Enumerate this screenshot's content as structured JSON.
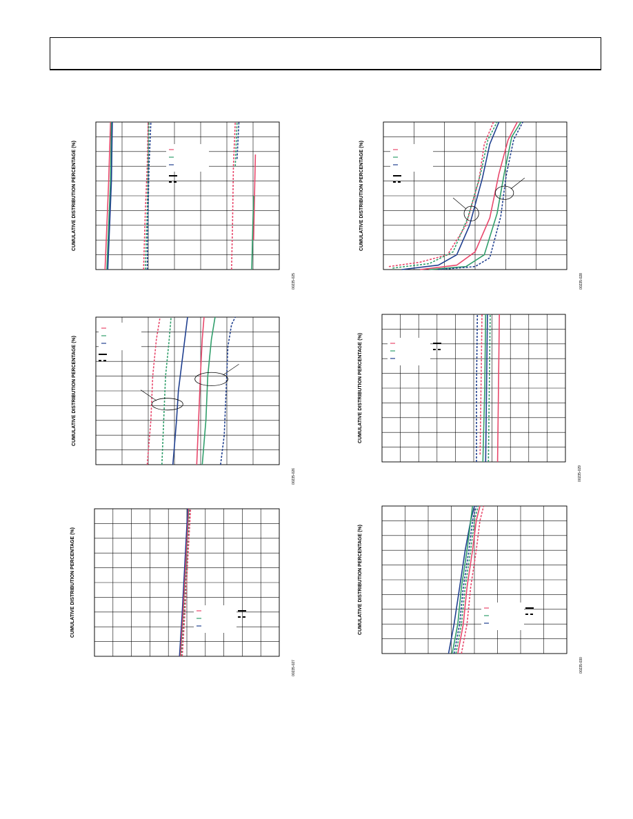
{
  "page": {
    "header_text": ""
  },
  "colors": {
    "red": "#e8476b",
    "green": "#2f9e6a",
    "blue": "#1f3f8f",
    "black": "#000000",
    "grid": "#000000"
  },
  "chart_data": [
    {
      "id": "fig1",
      "type": "line",
      "ylabel": "CUMULATIVE DISTRIBUTION PERCENTAGE  (%)",
      "figure_id": "00235-025",
      "legend_placement": "center",
      "grid": true,
      "series": [
        {
          "color": "red",
          "dash": false,
          "points": [
            [
              0.05,
              0.0
            ],
            [
              0.06,
              0.3
            ],
            [
              0.07,
              0.6
            ],
            [
              0.08,
              1.0
            ]
          ]
        },
        {
          "color": "green",
          "dash": false,
          "points": [
            [
              0.06,
              0.0
            ],
            [
              0.07,
              0.3
            ],
            [
              0.08,
              0.6
            ],
            [
              0.085,
              1.0
            ]
          ]
        },
        {
          "color": "blue",
          "dash": false,
          "points": [
            [
              0.065,
              0.0
            ],
            [
              0.075,
              0.3
            ],
            [
              0.085,
              0.6
            ],
            [
              0.09,
              1.0
            ]
          ]
        },
        {
          "color": "red",
          "dash": true,
          "points": [
            [
              0.26,
              0.0
            ],
            [
              0.27,
              0.4
            ],
            [
              0.28,
              0.7
            ],
            [
              0.285,
              1.0
            ]
          ]
        },
        {
          "color": "green",
          "dash": true,
          "points": [
            [
              0.27,
              0.0
            ],
            [
              0.28,
              0.4
            ],
            [
              0.285,
              0.7
            ],
            [
              0.29,
              1.0
            ]
          ]
        },
        {
          "color": "blue",
          "dash": true,
          "points": [
            [
              0.28,
              0.0
            ],
            [
              0.285,
              0.4
            ],
            [
              0.29,
              0.7
            ],
            [
              0.3,
              1.0
            ]
          ]
        },
        {
          "color": "red",
          "dash": true,
          "points": [
            [
              0.74,
              0.0
            ],
            [
              0.745,
              0.3
            ],
            [
              0.75,
              0.7
            ],
            [
              0.76,
              1.0
            ]
          ]
        },
        {
          "color": "green",
          "dash": true,
          "points": [
            [
              0.76,
              0.7
            ],
            [
              0.765,
              0.85
            ],
            [
              0.77,
              1.0
            ]
          ]
        },
        {
          "color": "blue",
          "dash": true,
          "points": [
            [
              0.77,
              0.75
            ],
            [
              0.775,
              0.88
            ],
            [
              0.78,
              1.0
            ]
          ]
        },
        {
          "color": "red",
          "dash": false,
          "points": [
            [
              0.86,
              0.2
            ],
            [
              0.865,
              0.5
            ],
            [
              0.87,
              0.78
            ]
          ]
        },
        {
          "color": "green",
          "dash": false,
          "points": [
            [
              0.85,
              0.0
            ],
            [
              0.855,
              0.25
            ],
            [
              0.86,
              0.5
            ]
          ]
        },
        {
          "color": "blue",
          "dash": false,
          "points": [
            [
              0.86,
              0.2
            ],
            [
              0.86,
              0.2
            ]
          ]
        }
      ]
    },
    {
      "id": "fig2",
      "type": "line",
      "ylabel": "CUMULATIVE DISTRIBUTION PERCENTAGE  (%)",
      "figure_id": "00235-028",
      "legend_placement": "top-left",
      "grid": true,
      "series": [
        {
          "color": "red",
          "dash": true,
          "points": [
            [
              0.03,
              0.02
            ],
            [
              0.2,
              0.05
            ],
            [
              0.35,
              0.1
            ],
            [
              0.45,
              0.3
            ],
            [
              0.52,
              0.6
            ],
            [
              0.55,
              0.85
            ],
            [
              0.6,
              1.0
            ]
          ]
        },
        {
          "color": "green",
          "dash": true,
          "points": [
            [
              0.05,
              0.01
            ],
            [
              0.25,
              0.04
            ],
            [
              0.38,
              0.12
            ],
            [
              0.46,
              0.35
            ],
            [
              0.53,
              0.65
            ],
            [
              0.57,
              0.88
            ],
            [
              0.62,
              1.0
            ]
          ]
        },
        {
          "color": "blue",
          "dash": false,
          "points": [
            [
              0.1,
              0.0
            ],
            [
              0.3,
              0.03
            ],
            [
              0.4,
              0.1
            ],
            [
              0.47,
              0.3
            ],
            [
              0.54,
              0.62
            ],
            [
              0.58,
              0.85
            ],
            [
              0.63,
              1.0
            ]
          ]
        },
        {
          "color": "red",
          "dash": false,
          "points": [
            [
              0.2,
              0.0
            ],
            [
              0.4,
              0.03
            ],
            [
              0.5,
              0.12
            ],
            [
              0.58,
              0.35
            ],
            [
              0.63,
              0.65
            ],
            [
              0.68,
              0.88
            ],
            [
              0.73,
              1.0
            ]
          ]
        },
        {
          "color": "green",
          "dash": false,
          "points": [
            [
              0.25,
              0.0
            ],
            [
              0.45,
              0.02
            ],
            [
              0.55,
              0.1
            ],
            [
              0.62,
              0.38
            ],
            [
              0.66,
              0.66
            ],
            [
              0.7,
              0.9
            ],
            [
              0.75,
              1.0
            ]
          ]
        },
        {
          "color": "blue",
          "dash": true,
          "points": [
            [
              0.3,
              0.0
            ],
            [
              0.5,
              0.02
            ],
            [
              0.58,
              0.08
            ],
            [
              0.64,
              0.36
            ],
            [
              0.67,
              0.64
            ],
            [
              0.71,
              0.88
            ],
            [
              0.76,
              1.0
            ]
          ]
        }
      ],
      "ellipses": [
        {
          "cx": 0.48,
          "cy": 0.38,
          "rx": 0.04,
          "ry": 0.05
        },
        {
          "cx": 0.66,
          "cy": 0.52,
          "rx": 0.05,
          "ry": 0.045
        }
      ]
    },
    {
      "id": "fig3",
      "type": "line",
      "ylabel": "CUMULATIVE DISTRIBUTION PERCENTAGE  (%)",
      "figure_id": "00235-026",
      "legend_placement": "top-left",
      "grid": true,
      "series": [
        {
          "color": "red",
          "dash": true,
          "points": [
            [
              0.28,
              0.0
            ],
            [
              0.3,
              0.3
            ],
            [
              0.31,
              0.6
            ],
            [
              0.33,
              0.85
            ],
            [
              0.35,
              1.0
            ]
          ]
        },
        {
          "color": "green",
          "dash": true,
          "points": [
            [
              0.36,
              0.0
            ],
            [
              0.37,
              0.3
            ],
            [
              0.38,
              0.6
            ],
            [
              0.4,
              0.85
            ],
            [
              0.41,
              1.0
            ]
          ]
        },
        {
          "color": "blue",
          "dash": false,
          "points": [
            [
              0.42,
              0.0
            ],
            [
              0.44,
              0.3
            ],
            [
              0.45,
              0.5
            ],
            [
              0.48,
              0.8
            ],
            [
              0.5,
              1.0
            ]
          ]
        },
        {
          "color": "red",
          "dash": false,
          "points": [
            [
              0.55,
              0.0
            ],
            [
              0.56,
              0.3
            ],
            [
              0.57,
              0.6
            ],
            [
              0.58,
              0.85
            ],
            [
              0.59,
              1.0
            ]
          ]
        },
        {
          "color": "green",
          "dash": false,
          "points": [
            [
              0.58,
              0.0
            ],
            [
              0.6,
              0.3
            ],
            [
              0.61,
              0.6
            ],
            [
              0.63,
              0.85
            ],
            [
              0.65,
              1.0
            ]
          ]
        },
        {
          "color": "blue",
          "dash": true,
          "points": [
            [
              0.68,
              0.0
            ],
            [
              0.7,
              0.2
            ],
            [
              0.71,
              0.5
            ],
            [
              0.72,
              0.8
            ],
            [
              0.74,
              0.95
            ],
            [
              0.76,
              1.0
            ]
          ]
        }
      ],
      "ellipses": [
        {
          "cx": 0.39,
          "cy": 0.41,
          "rx": 0.085,
          "ry": 0.04
        },
        {
          "cx": 0.63,
          "cy": 0.58,
          "rx": 0.09,
          "ry": 0.045
        }
      ]
    },
    {
      "id": "fig4",
      "type": "line",
      "ylabel": "CUMULATIVE DISTRIBUTION PERCENTAGE  (%)",
      "figure_id": "00235-029",
      "legend_placement": "top-left",
      "grid": true,
      "series": [
        {
          "color": "blue",
          "dash": true,
          "points": [
            [
              0.515,
              0.0
            ],
            [
              0.515,
              0.5
            ],
            [
              0.52,
              1.0
            ]
          ]
        },
        {
          "color": "red",
          "dash": true,
          "points": [
            [
              0.535,
              0.05
            ],
            [
              0.54,
              0.5
            ],
            [
              0.545,
              1.0
            ]
          ]
        },
        {
          "color": "green",
          "dash": false,
          "points": [
            [
              0.55,
              0.0
            ],
            [
              0.56,
              0.5
            ],
            [
              0.565,
              1.0
            ]
          ]
        },
        {
          "color": "blue",
          "dash": false,
          "points": [
            [
              0.565,
              0.0
            ],
            [
              0.57,
              0.5
            ],
            [
              0.575,
              1.0
            ]
          ]
        },
        {
          "color": "green",
          "dash": true,
          "points": [
            [
              0.58,
              0.0
            ],
            [
              0.585,
              0.5
            ],
            [
              0.59,
              1.0
            ]
          ]
        },
        {
          "color": "red",
          "dash": false,
          "points": [
            [
              0.63,
              0.0
            ],
            [
              0.635,
              0.5
            ],
            [
              0.64,
              1.0
            ]
          ]
        }
      ]
    },
    {
      "id": "fig5",
      "type": "line",
      "ylabel": "CUMULATIVE DISTRIBUTION PERCENTAGE  (%)",
      "figure_id": "00235-027",
      "legend_placement": "bottom-right",
      "grid": true,
      "series": [
        {
          "color": "blue",
          "dash": false,
          "points": [
            [
              0.46,
              0.0
            ],
            [
              0.475,
              0.3
            ],
            [
              0.49,
              0.65
            ],
            [
              0.505,
              1.0
            ]
          ]
        },
        {
          "color": "red",
          "dash": false,
          "points": [
            [
              0.465,
              0.0
            ],
            [
              0.48,
              0.3
            ],
            [
              0.495,
              0.65
            ],
            [
              0.51,
              1.0
            ]
          ]
        },
        {
          "color": "green",
          "dash": true,
          "points": [
            [
              0.47,
              0.0
            ],
            [
              0.485,
              0.3
            ],
            [
              0.5,
              0.65
            ],
            [
              0.515,
              1.0
            ]
          ]
        },
        {
          "color": "red",
          "dash": true,
          "points": [
            [
              0.475,
              0.0
            ],
            [
              0.49,
              0.3
            ],
            [
              0.505,
              0.65
            ],
            [
              0.52,
              1.0
            ]
          ]
        }
      ]
    },
    {
      "id": "fig6",
      "type": "line",
      "ylabel": "CUMULATIVE DISTRIBUTION PERCENTAGE  (%)",
      "figure_id": "00235-030",
      "legend_placement": "bottom-right",
      "grid": true,
      "series": [
        {
          "color": "blue",
          "dash": false,
          "points": [
            [
              0.36,
              0.0
            ],
            [
              0.39,
              0.2
            ],
            [
              0.42,
              0.45
            ],
            [
              0.45,
              0.7
            ],
            [
              0.48,
              0.9
            ],
            [
              0.5,
              1.0
            ]
          ]
        },
        {
          "color": "green",
          "dash": false,
          "points": [
            [
              0.38,
              0.0
            ],
            [
              0.41,
              0.2
            ],
            [
              0.43,
              0.45
            ],
            [
              0.46,
              0.7
            ],
            [
              0.48,
              0.9
            ],
            [
              0.49,
              1.0
            ]
          ]
        },
        {
          "color": "blue",
          "dash": true,
          "points": [
            [
              0.39,
              0.0
            ],
            [
              0.42,
              0.2
            ],
            [
              0.44,
              0.45
            ],
            [
              0.47,
              0.7
            ],
            [
              0.49,
              0.9
            ],
            [
              0.51,
              1.0
            ]
          ]
        },
        {
          "color": "green",
          "dash": true,
          "points": [
            [
              0.4,
              0.0
            ],
            [
              0.43,
              0.2
            ],
            [
              0.45,
              0.45
            ],
            [
              0.48,
              0.7
            ],
            [
              0.5,
              0.9
            ],
            [
              0.52,
              1.0
            ]
          ]
        },
        {
          "color": "red",
          "dash": false,
          "points": [
            [
              0.41,
              0.0
            ],
            [
              0.44,
              0.2
            ],
            [
              0.46,
              0.45
            ],
            [
              0.49,
              0.7
            ],
            [
              0.51,
              0.9
            ],
            [
              0.53,
              1.0
            ]
          ]
        },
        {
          "color": "red",
          "dash": true,
          "points": [
            [
              0.43,
              0.0
            ],
            [
              0.46,
              0.2
            ],
            [
              0.48,
              0.45
            ],
            [
              0.51,
              0.7
            ],
            [
              0.53,
              0.9
            ],
            [
              0.55,
              1.0
            ]
          ]
        }
      ]
    }
  ]
}
